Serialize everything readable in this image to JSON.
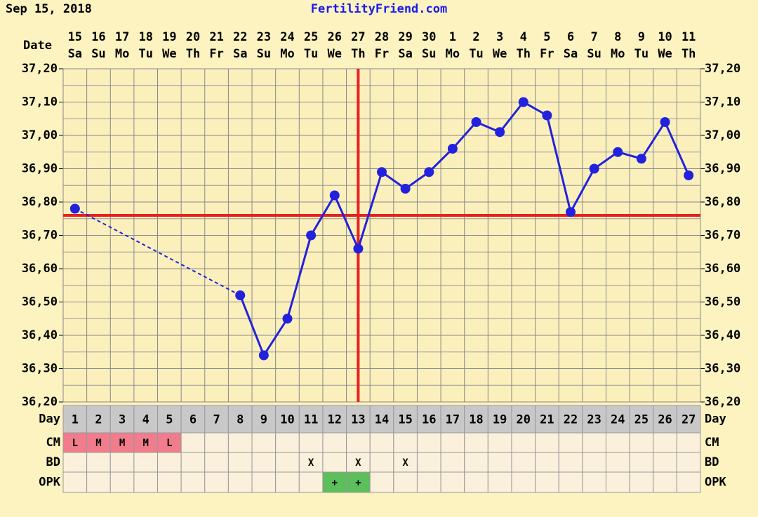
{
  "header": {
    "date": "Sep 15, 2018",
    "site": "FertilityFriend.com"
  },
  "chart_data": {
    "type": "line",
    "row_labels": {
      "date": "Date",
      "day": "Day",
      "cm": "CM",
      "bd": "BD",
      "opk": "OPK"
    },
    "categories": [
      "15",
      "16",
      "17",
      "18",
      "19",
      "20",
      "21",
      "22",
      "23",
      "24",
      "25",
      "26",
      "27",
      "28",
      "29",
      "30",
      "1",
      "2",
      "3",
      "4",
      "5",
      "6",
      "7",
      "8",
      "9",
      "10",
      "11"
    ],
    "weekdays": [
      "Sa",
      "Su",
      "Mo",
      "Tu",
      "We",
      "Th",
      "Fr",
      "Sa",
      "Su",
      "Mo",
      "Tu",
      "We",
      "Th",
      "Fr",
      "Sa",
      "Su",
      "Mo",
      "Tu",
      "We",
      "Th",
      "Fr",
      "Sa",
      "Su",
      "Mo",
      "Tu",
      "We",
      "Th"
    ],
    "days": [
      1,
      2,
      3,
      4,
      5,
      6,
      7,
      8,
      9,
      10,
      11,
      12,
      13,
      14,
      15,
      16,
      17,
      18,
      19,
      20,
      21,
      22,
      23,
      24,
      25,
      26,
      27
    ],
    "series": [
      {
        "name": "Temperature",
        "color": "#2222dd",
        "values": [
          36.78,
          null,
          null,
          null,
          null,
          null,
          null,
          36.52,
          36.34,
          36.45,
          36.7,
          36.82,
          36.66,
          36.89,
          36.84,
          36.89,
          36.96,
          37.04,
          37.01,
          37.1,
          37.06,
          36.77,
          36.9,
          36.95,
          36.93,
          37.04,
          36.88
        ]
      }
    ],
    "cm": [
      "L",
      "M",
      "M",
      "M",
      "L",
      null,
      null,
      null,
      null,
      null,
      null,
      null,
      null,
      null,
      null,
      null,
      null,
      null,
      null,
      null,
      null,
      null,
      null,
      null,
      null,
      null,
      null
    ],
    "cm_color": "#f07c8c",
    "bd": [
      null,
      null,
      null,
      null,
      null,
      null,
      null,
      null,
      null,
      null,
      "X",
      null,
      "X",
      null,
      "X",
      null,
      null,
      null,
      null,
      null,
      null,
      null,
      null,
      null,
      null,
      null,
      null
    ],
    "opk": [
      null,
      null,
      null,
      null,
      null,
      null,
      null,
      null,
      null,
      null,
      null,
      "+",
      "+",
      null,
      null,
      null,
      null,
      null,
      null,
      null,
      null,
      null,
      null,
      null,
      null,
      null,
      null
    ],
    "opk_color": "#5cbf5c",
    "coverline": 36.76,
    "ovulation_day": 13,
    "marker_line_color": "#e82020",
    "ylim": [
      36.2,
      37.2
    ],
    "yticks": [
      {
        "value": 36.2,
        "label": "36,20"
      },
      {
        "value": 36.3,
        "label": "36,30"
      },
      {
        "value": 36.4,
        "label": "36,40"
      },
      {
        "value": 36.5,
        "label": "36,50"
      },
      {
        "value": 36.6,
        "label": "36,60"
      },
      {
        "value": 36.7,
        "label": "36,70"
      },
      {
        "value": 36.8,
        "label": "36,80"
      },
      {
        "value": 36.9,
        "label": "36,90"
      },
      {
        "value": 37.0,
        "label": "37,00"
      },
      {
        "value": 37.1,
        "label": "37,10"
      },
      {
        "value": 37.2,
        "label": "37,20"
      }
    ],
    "grid": true
  }
}
